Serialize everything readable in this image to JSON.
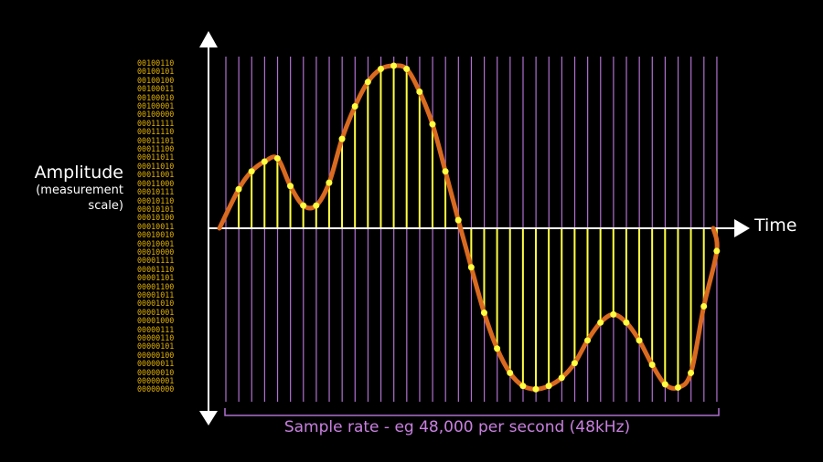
{
  "labels": {
    "amplitude": "Amplitude",
    "measurement_scale": "(measurement\nscale)",
    "measurement_line1": "(measurement",
    "measurement_line2": "scale)",
    "time": "Time",
    "sample_rate": "Sample rate - eg 48,000 per second (48kHz)"
  },
  "binary_scale": [
    "00100110",
    "00100101",
    "00100100",
    "00100011",
    "00100010",
    "00100001",
    "00100000",
    "00011111",
    "00011110",
    "00011101",
    "00011100",
    "00011011",
    "00011010",
    "00011001",
    "00011000",
    "00010111",
    "00010110",
    "00010101",
    "00010100",
    "00010011",
    "00010010",
    "00010001",
    "00010000",
    "00001111",
    "00001110",
    "00001101",
    "00001100",
    "00001011",
    "00001010",
    "00001001",
    "00001000",
    "00000111",
    "00000110",
    "00000101",
    "00000100",
    "00000011",
    "00000010",
    "00000001",
    "00000000"
  ],
  "colors": {
    "background": "#000000",
    "axis": "#ffffff",
    "binary_text": "#e3b000",
    "sample_grid": "#b070d0",
    "sample_stem": "#ffff40",
    "sample_dot": "#ffff40",
    "waveform": "#d96a20",
    "sample_rate_text": "#c980e0"
  },
  "diagram": {
    "sample_count": 38,
    "amplitude_range": [
      -1,
      1
    ],
    "samples": [
      0.24,
      0.35,
      0.41,
      0.43,
      0.26,
      0.14,
      0.14,
      0.28,
      0.55,
      0.75,
      0.9,
      0.98,
      1.0,
      0.98,
      0.84,
      0.64,
      0.35,
      0.05,
      -0.24,
      -0.52,
      -0.74,
      -0.89,
      -0.97,
      -0.99,
      -0.97,
      -0.92,
      -0.83,
      -0.69,
      -0.58,
      -0.53,
      -0.58,
      -0.69,
      -0.84,
      -0.96,
      -0.98,
      -0.89,
      -0.48,
      -0.14
    ]
  }
}
